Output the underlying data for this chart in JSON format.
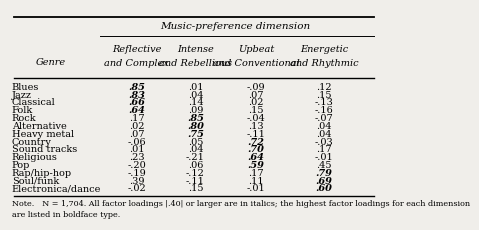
{
  "title": "Music-preference dimension",
  "col_headers": [
    [
      "Reflective",
      "and Complex"
    ],
    [
      "Intense",
      "and Rebellious"
    ],
    [
      "Upbeat",
      "and Conventional"
    ],
    [
      "Energetic",
      "and Rhythmic"
    ]
  ],
  "row_label": "Genre",
  "genres": [
    "Blues",
    "Jazz",
    "Classical",
    "Folk",
    "Rock",
    "Alternative",
    "Heavy metal",
    "Country",
    "Sound tracks",
    "Religious",
    "Pop",
    "Rap/hip-hop",
    "Soul/funk",
    "Electronica/dance"
  ],
  "data": [
    [
      ".85",
      ".01",
      "-.09",
      ".12"
    ],
    [
      ".83",
      ".04",
      ".07",
      ".15"
    ],
    [
      ".66",
      ".14",
      ".02",
      "-.13"
    ],
    [
      ".64",
      ".09",
      ".15",
      "-.16"
    ],
    [
      ".17",
      ".85",
      "-.04",
      "-.07"
    ],
    [
      ".02",
      ".80",
      ".13",
      ".04"
    ],
    [
      ".07",
      ".75",
      "-.11",
      ".04"
    ],
    [
      "-.06",
      ".05",
      ".72",
      "-.03"
    ],
    [
      ".01",
      ".04",
      ".70",
      ".17"
    ],
    [
      ".23",
      "-.21",
      ".64",
      "-.01"
    ],
    [
      "-.20",
      ".06",
      ".59",
      ".45"
    ],
    [
      "-.19",
      "-.12",
      ".17",
      ".79"
    ],
    [
      ".39",
      "-.11",
      ".11",
      ".69"
    ],
    [
      "-.02",
      ".15",
      "-.01",
      ".60"
    ]
  ],
  "bold_italic": [
    [
      true,
      false,
      false,
      false
    ],
    [
      true,
      false,
      false,
      false
    ],
    [
      true,
      false,
      false,
      false
    ],
    [
      true,
      false,
      false,
      false
    ],
    [
      false,
      true,
      false,
      false
    ],
    [
      false,
      true,
      false,
      false
    ],
    [
      false,
      true,
      false,
      false
    ],
    [
      false,
      false,
      true,
      false
    ],
    [
      false,
      false,
      true,
      false
    ],
    [
      false,
      false,
      true,
      false
    ],
    [
      false,
      false,
      true,
      false
    ],
    [
      false,
      false,
      false,
      true
    ],
    [
      false,
      false,
      false,
      true
    ],
    [
      false,
      false,
      false,
      true
    ]
  ],
  "note": "Note.  N = 1,704. All factor loadings |.40| or larger are in italics; the highest factor loadings for each dimension",
  "note2": "are listed in boldface type.",
  "bg_color": "#f0eeea",
  "font_size": 7.0,
  "header_font_size": 7.5
}
